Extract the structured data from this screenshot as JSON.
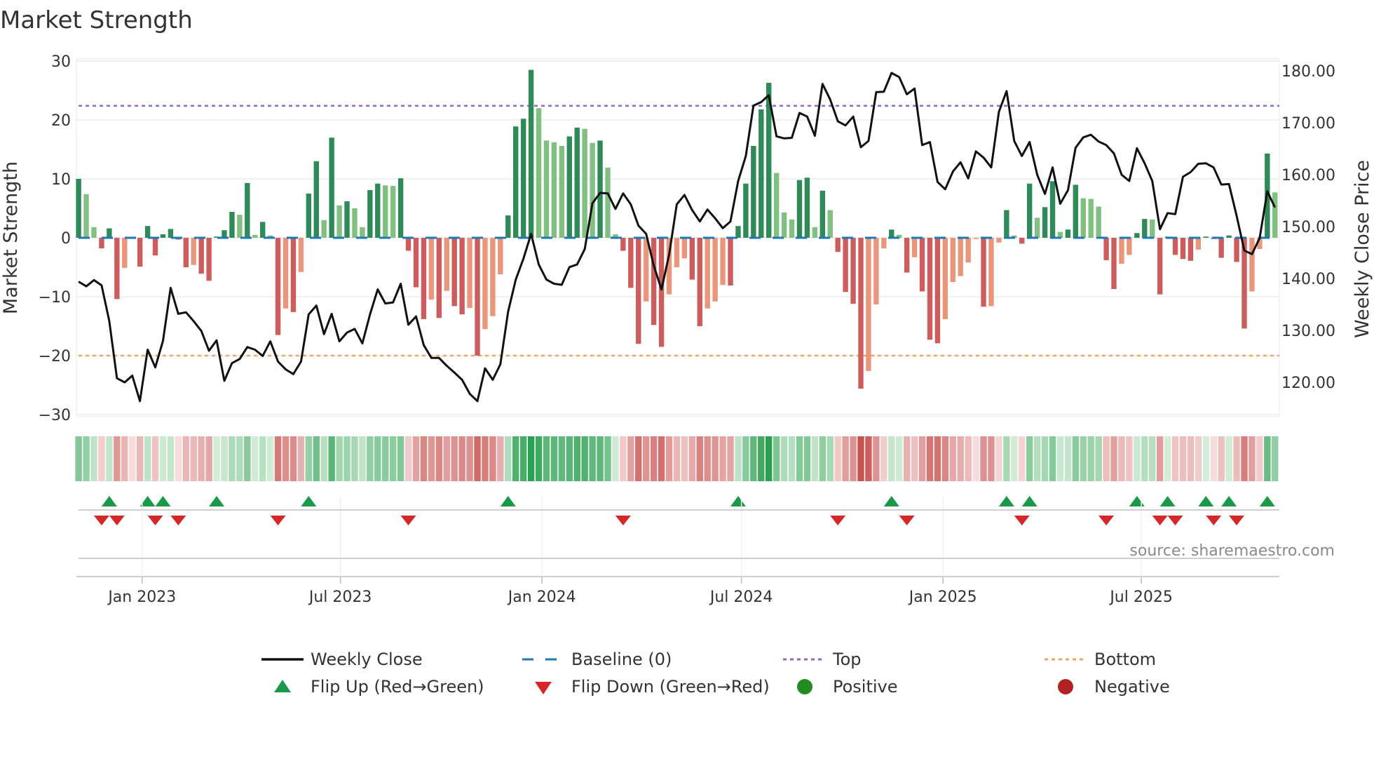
{
  "chart_data": {
    "type": "bar",
    "title": "Market Strength",
    "ylabel": "Market Strength",
    "ylabel_right": "Weekly Close Price",
    "ylim": [
      -30,
      30
    ],
    "ylim_right": [
      113.8,
      181.9
    ],
    "yticks": [
      "30",
      "20",
      "10",
      "0",
      "−10",
      "−20",
      "−30"
    ],
    "ytick_values": [
      30,
      20,
      10,
      0,
      -10,
      -20,
      -30
    ],
    "yticks_right": [
      "180.00",
      "170.00",
      "160.00",
      "150.00",
      "140.00",
      "130.00",
      "120.00"
    ],
    "ytick_right_values": [
      180,
      170,
      160,
      150,
      140,
      130,
      120
    ],
    "x_start": "2022-11-04",
    "x_step_days": 7,
    "xlim": [
      "2022-11-02",
      "2025-11-04"
    ],
    "xticks": [
      {
        "label": "Jan 2023",
        "date": "2023-01-01"
      },
      {
        "label": "Jul 2023",
        "date": "2023-07-01"
      },
      {
        "label": "Jan 2024",
        "date": "2024-01-01"
      },
      {
        "label": "Jul 2024",
        "date": "2024-07-01"
      },
      {
        "label": "Jan 2025",
        "date": "2025-01-01"
      },
      {
        "label": "Jul 2025",
        "date": "2025-07-01"
      }
    ],
    "top_level": 22.4,
    "bottom_level": -20,
    "baseline": 0,
    "strength": [
      10,
      7.4,
      1.8,
      -1.8,
      1.6,
      -10.4,
      -5.1,
      -0.2,
      -4.9,
      2.0,
      -3.0,
      0.6,
      1.5,
      -0.3,
      -5.0,
      -4.6,
      -6.1,
      -7.3,
      0.2,
      1.3,
      4.4,
      3.9,
      9.3,
      0.5,
      2.7,
      0.4,
      -16.5,
      -12.0,
      -12.6,
      -5.8,
      7.5,
      13.0,
      3.0,
      17.0,
      5.5,
      6.2,
      5.0,
      1.8,
      8.1,
      9.2,
      8.9,
      8.8,
      10.1,
      -2.2,
      -8.4,
      -13.8,
      -10.5,
      -13.6,
      -9.0,
      -11.6,
      -13.0,
      -11.9,
      -20.0,
      -15.5,
      -13.3,
      -6.2,
      3.8,
      18.9,
      20.2,
      28.5,
      22.0,
      16.5,
      16.2,
      15.6,
      17.2,
      18.7,
      18.5,
      16.1,
      16.5,
      11.9,
      0.6,
      -2.2,
      -8.5,
      -18.0,
      -10.8,
      -14.8,
      -18.5,
      -9.6,
      -5.0,
      -3.5,
      -7.1,
      -15,
      -12,
      -10.8,
      -8,
      -8.1,
      2.0,
      9.2,
      15.6,
      21.8,
      26.3,
      11,
      4.3,
      3.1,
      9.8,
      10.2,
      1.8,
      8,
      4.7,
      -2.4,
      -9.2,
      -11.2,
      -25.6,
      -22.6,
      -11.3,
      -1.8,
      1.4,
      0.5,
      -5.9,
      -3.3,
      -9.1,
      -17.3,
      -17.9,
      -13.8,
      -7.5,
      -6.5,
      -4.2,
      -0.2,
      -11.7,
      -11.6,
      -0.8,
      4.7,
      0.4,
      -1,
      9.2,
      3.4,
      5.2,
      9.6,
      1.0,
      1.4,
      9.0,
      6.7,
      6.6,
      5.3,
      -3.8,
      -8.7,
      -4.4,
      -2.9,
      0.8,
      3.2,
      3.1,
      -9.6,
      0.2,
      -2.9,
      -3.6,
      -3.9,
      -2,
      0.2,
      -0.2,
      -3.4,
      0.4,
      -4.1,
      -15.4,
      -9.1,
      -1.9,
      14.3,
      7.7
    ],
    "weekly_close": [
      139.4,
      138.5,
      139.7,
      138.7,
      131.8,
      120.8,
      120.0,
      121.3,
      116.4,
      126.3,
      122.9,
      128.0,
      138.2,
      133.2,
      133.5,
      131.8,
      129.9,
      126.1,
      128.1,
      120.3,
      123.7,
      124.5,
      126.8,
      126.3,
      125.1,
      127.9,
      124.0,
      122.5,
      121.6,
      124.0,
      133.1,
      134.8,
      129.3,
      133.2,
      127.9,
      129.6,
      130.3,
      127.5,
      133.1,
      137.9,
      135.2,
      135.4,
      139.0,
      131.1,
      132.7,
      127.2,
      124.7,
      124.7,
      123.2,
      121.9,
      120.5,
      117.8,
      116.4,
      122.7,
      120.5,
      123.5,
      133.6,
      139.8,
      143.8,
      148.6,
      142.7,
      139.8,
      139.0,
      138.8,
      142.2,
      142.7,
      145.7,
      154.5,
      156.5,
      156.4,
      153.4,
      156.4,
      154.3,
      150.2,
      148.6,
      142.5,
      137.9,
      144.6,
      154.3,
      156.1,
      153.2,
      151.0,
      153.3,
      151.6,
      149.7,
      151.0,
      158.8,
      163.6,
      173.3,
      174.0,
      175.3,
      167.4,
      167.0,
      167.1,
      171.9,
      171.2,
      167.5,
      177.5,
      174.5,
      170.3,
      169.5,
      171.2,
      165.3,
      166.5,
      175.9,
      176.0,
      179.6,
      178.8,
      175.5,
      176.6,
      165.7,
      166.3,
      158.6,
      157.2,
      160.6,
      162.4,
      159.3,
      164.5,
      163.3,
      161.4,
      172.1,
      176.1,
      166.5,
      163.6,
      166.3,
      160.0,
      156.3,
      161.4,
      154.4,
      157.0,
      165.2,
      167.2,
      167.7,
      166.4,
      165.7,
      164.1,
      160.0,
      158.8,
      165.1,
      162.2,
      158.8,
      149.5,
      152.6,
      152.4,
      159.6,
      160.5,
      162.1,
      162.2,
      161.4,
      158.1,
      158.2,
      152.1,
      145.4,
      144.7,
      147.8,
      156.8,
      153.7
    ],
    "legend": {
      "placement": "bottom",
      "items": [
        {
          "label": "Weekly Close",
          "symbol": "line"
        },
        {
          "label": "Baseline (0)",
          "symbol": "dash"
        },
        {
          "label": "Top",
          "symbol": "dot"
        },
        {
          "label": "Bottom",
          "symbol": "dot"
        },
        {
          "label": "Flip Up (Red→Green)",
          "symbol": "triangle-up"
        },
        {
          "label": "Flip Down (Green→Red)",
          "symbol": "triangle-down"
        },
        {
          "label": "Positive",
          "symbol": "circle"
        },
        {
          "label": "Negative",
          "symbol": "circle"
        }
      ]
    },
    "source": "source: sharemaestro.com",
    "grid": true
  },
  "colors": {
    "pos_strong": "#2e8b57",
    "pos_weak": "#80c080",
    "neg_strong": "#cd5c5c",
    "neg_weak": "#e9967a",
    "line": "#111111",
    "baseline": "#1f77b4",
    "top": "#9467bd",
    "bottom": "#f4a460",
    "flip_up": "#1a9a48",
    "flip_down": "#d62728",
    "positive": "#228b22",
    "negative": "#b22222"
  }
}
